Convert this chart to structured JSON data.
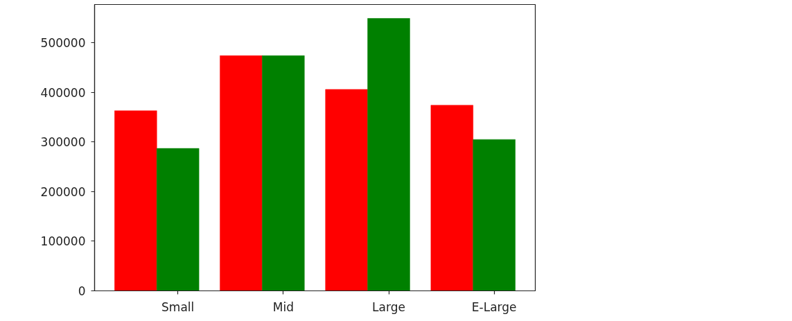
{
  "chart_data": {
    "type": "bar",
    "categories": [
      "Small",
      "Mid",
      "Large",
      "E-Large"
    ],
    "series": [
      {
        "color": "#ff0000",
        "values": [
          363000,
          474000,
          406000,
          374000
        ]
      },
      {
        "color": "#008000",
        "values": [
          287000,
          474000,
          549000,
          305000
        ]
      }
    ],
    "ylim": [
      0,
      577000
    ],
    "yticks": [
      0,
      100000,
      200000,
      300000,
      400000,
      500000
    ],
    "grid": false
  }
}
